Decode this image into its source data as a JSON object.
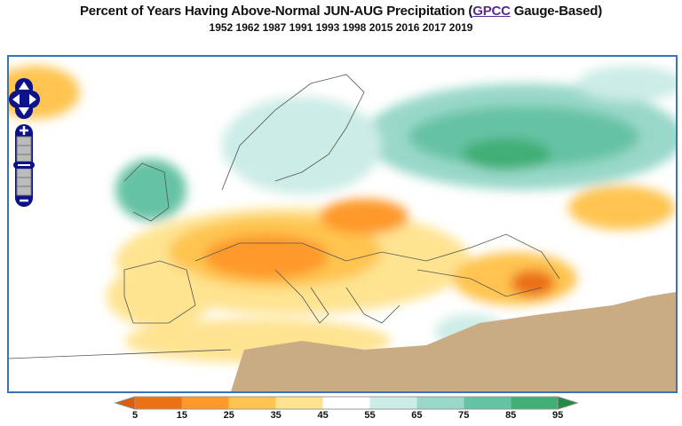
{
  "header": {
    "title_prefix": "Percent of Years Having Above-Normal JUN-AUG Precipitation (",
    "title_link": "GPCC",
    "title_suffix": " Gauge-Based)",
    "years": "1952 1962 1987 1991 1993 1998 2015 2016 2017 2019"
  },
  "map": {
    "region": "Europe",
    "colors": {
      "missing_land": "#c9ab84",
      "border": "#3b73b9",
      "boundaries": "#555555"
    },
    "controls": [
      "pan-up",
      "pan-left",
      "pan-right",
      "pan-down",
      "zoom-in",
      "zoom-out"
    ]
  },
  "legend": {
    "ticks": [
      "5",
      "15",
      "25",
      "35",
      "45",
      "55",
      "65",
      "75",
      "85",
      "95"
    ],
    "colors": [
      "#d95f0e",
      "#ec7014",
      "#fe9929",
      "#fec44f",
      "#fee391",
      "#ffffff",
      "#ccece6",
      "#99d8c9",
      "#66c2a4",
      "#41ae76",
      "#238b45"
    ],
    "extend": "both"
  }
}
